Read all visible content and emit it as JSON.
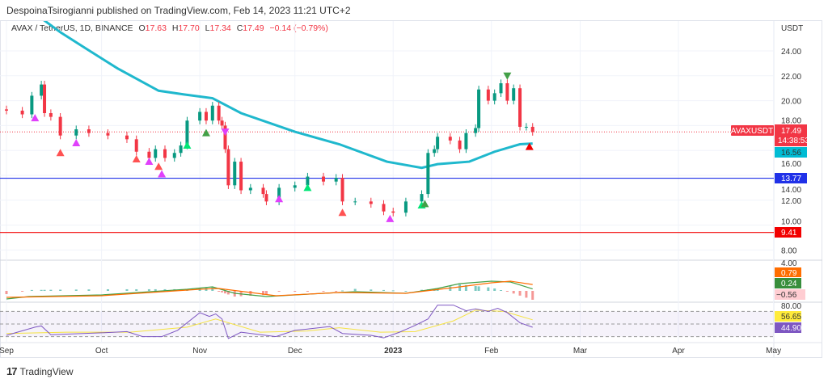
{
  "header": {
    "published": "DespoinaTsirogianni published on TradingView.com, Feb 14, 2023 11:21 UTC+2"
  },
  "symbol": {
    "name": "AVAX / TetherUS, 1D, BINANCE",
    "open_label": "O",
    "open": "17.63",
    "high_label": "H",
    "high": "17.70",
    "low_label": "L",
    "low": "17.34",
    "close_label": "C",
    "close": "17.49",
    "change": "−0.14 (−0.79%)"
  },
  "price_axis": {
    "currency": "USDT",
    "ticks": [
      "24.00",
      "22.00",
      "20.00",
      "18.00",
      "16.00",
      "14.00",
      "12.00",
      "10.00",
      "8.00"
    ],
    "tick_values": [
      24,
      22,
      20,
      18,
      16,
      14,
      12,
      10,
      8
    ]
  },
  "tags": {
    "ticker": "AVAXUSDT",
    "last_price": "17.49",
    "countdown": "14:38:53",
    "ma": "16.56",
    "blue_line": "13.77",
    "red_line": "9.41",
    "macd_top": "4.00",
    "signal": "0.79",
    "macd": "0.24",
    "hist": "−0.56",
    "rsi_top": "80.00",
    "rsi_ma": "56.65",
    "rsi": "44.90"
  },
  "time_axis": {
    "labels": [
      "Sep",
      "Oct",
      "Nov",
      "Dec",
      "2023",
      "Feb",
      "Mar",
      "Apr",
      "May"
    ],
    "dates": [
      "2022-09-01",
      "2022-10-01",
      "2022-11-01",
      "2022-12-01",
      "2023-01-01",
      "2023-02-01",
      "2023-03-01",
      "2023-04-01",
      "2023-05-01"
    ]
  },
  "colors": {
    "up": "#089981",
    "down": "#f23645",
    "ma": "#1fb8cd",
    "blue_line": "#2031e8",
    "red_line": "#f20000",
    "macd": "#43a047",
    "signal": "#ff6d00",
    "rsi": "#7e57c2",
    "rsi_ma": "#f5e342"
  },
  "chart_data": {
    "type": "candlestick",
    "closes": [
      [
        "2022-09-01",
        19.2
      ],
      [
        "2022-09-06",
        18.9
      ],
      [
        "2022-09-09",
        20.4
      ],
      [
        "2022-09-12",
        21.3
      ],
      [
        "2022-09-13",
        19.0
      ],
      [
        "2022-09-15",
        18.7
      ],
      [
        "2022-09-18",
        17.2
      ],
      [
        "2022-09-23",
        17.7
      ],
      [
        "2022-09-27",
        17.4
      ],
      [
        "2022-10-03",
        17.2
      ],
      [
        "2022-10-09",
        16.9
      ],
      [
        "2022-10-12",
        15.9
      ],
      [
        "2022-10-16",
        15.4
      ],
      [
        "2022-10-18",
        16.1
      ],
      [
        "2022-10-21",
        15.4
      ],
      [
        "2022-10-24",
        15.8
      ],
      [
        "2022-10-26",
        16.4
      ],
      [
        "2022-10-28",
        18.4
      ],
      [
        "2022-11-01",
        19.1
      ],
      [
        "2022-11-03",
        18.4
      ],
      [
        "2022-11-05",
        19.6
      ],
      [
        "2022-11-07",
        18.4
      ],
      [
        "2022-11-08",
        18.0
      ],
      [
        "2022-11-09",
        16.1
      ],
      [
        "2022-11-10",
        13.2
      ],
      [
        "2022-11-12",
        15.1
      ],
      [
        "2022-11-14",
        12.8
      ],
      [
        "2022-11-17",
        13.0
      ],
      [
        "2022-11-21",
        12.5
      ],
      [
        "2022-11-22",
        11.9
      ],
      [
        "2022-11-26",
        13.0
      ],
      [
        "2022-12-01",
        13.2
      ],
      [
        "2022-12-05",
        13.9
      ],
      [
        "2022-12-10",
        13.5
      ],
      [
        "2022-12-14",
        13.8
      ],
      [
        "2022-12-16",
        11.9
      ],
      [
        "2022-12-20",
        11.9
      ],
      [
        "2022-12-25",
        11.7
      ],
      [
        "2022-12-29",
        11.1
      ],
      [
        "2023-01-01",
        11.0
      ],
      [
        "2023-01-05",
        11.9
      ],
      [
        "2023-01-10",
        12.5
      ],
      [
        "2023-01-12",
        15.8
      ],
      [
        "2023-01-14",
        16.1
      ],
      [
        "2023-01-15",
        17.1
      ],
      [
        "2023-01-19",
        16.8
      ],
      [
        "2023-01-22",
        16.1
      ],
      [
        "2023-01-24",
        17.4
      ],
      [
        "2023-01-27",
        17.8
      ],
      [
        "2023-01-28",
        20.9
      ],
      [
        "2023-01-31",
        20.0
      ],
      [
        "2023-02-02",
        20.6
      ],
      [
        "2023-02-04",
        21.4
      ],
      [
        "2023-02-06",
        20.0
      ],
      [
        "2023-02-08",
        21.0
      ],
      [
        "2023-02-10",
        17.9
      ],
      [
        "2023-02-12",
        17.9
      ],
      [
        "2023-02-14",
        17.49
      ]
    ],
    "moving_average": [
      [
        "2022-09-10",
        27.0
      ],
      [
        "2022-09-18",
        25.5
      ],
      [
        "2022-09-26",
        24.2
      ],
      [
        "2022-10-06",
        22.6
      ],
      [
        "2022-10-19",
        20.8
      ],
      [
        "2022-10-27",
        20.5
      ],
      [
        "2022-11-05",
        20.2
      ],
      [
        "2022-11-14",
        19.0
      ],
      [
        "2022-12-01",
        17.5
      ],
      [
        "2022-12-15",
        16.5
      ],
      [
        "2022-12-30",
        15.1
      ],
      [
        "2023-01-10",
        14.6
      ],
      [
        "2023-01-15",
        14.9
      ],
      [
        "2023-01-25",
        15.1
      ],
      [
        "2023-02-02",
        15.9
      ],
      [
        "2023-02-10",
        16.5
      ],
      [
        "2023-02-14",
        16.56
      ]
    ],
    "horizontal_lines": [
      13.77,
      9.41
    ],
    "markers": [
      {
        "date": "2022-09-10",
        "price": 18.6,
        "dir": "up",
        "color": "#e040fb"
      },
      {
        "date": "2022-09-23",
        "price": 16.6,
        "dir": "up",
        "color": "#e040fb"
      },
      {
        "date": "2022-10-16",
        "price": 15.1,
        "dir": "up",
        "color": "#e040fb"
      },
      {
        "date": "2022-10-20",
        "price": 14.1,
        "dir": "up",
        "color": "#e040fb"
      },
      {
        "date": "2022-11-26",
        "price": 12.1,
        "dir": "up",
        "color": "#e040fb"
      },
      {
        "date": "2022-12-31",
        "price": 10.5,
        "dir": "up",
        "color": "#e040fb"
      },
      {
        "date": "2022-09-18",
        "price": 15.8,
        "dir": "up",
        "color": "#ff5252"
      },
      {
        "date": "2022-10-12",
        "price": 15.3,
        "dir": "up",
        "color": "#ff5252"
      },
      {
        "date": "2022-10-19",
        "price": 14.7,
        "dir": "up",
        "color": "#ff5252"
      },
      {
        "date": "2022-12-16",
        "price": 11.0,
        "dir": "up",
        "color": "#ff5252"
      },
      {
        "date": "2023-02-13",
        "price": 16.3,
        "dir": "up",
        "color": "#f20000"
      },
      {
        "date": "2022-10-28",
        "price": 16.4,
        "dir": "up",
        "color": "#00e676"
      },
      {
        "date": "2022-12-05",
        "price": 13.0,
        "dir": "up",
        "color": "#00e676"
      },
      {
        "date": "2023-01-10",
        "price": 11.6,
        "dir": "up",
        "color": "#00e676"
      },
      {
        "date": "2022-11-03",
        "price": 17.4,
        "dir": "up",
        "color": "#43a047"
      },
      {
        "date": "2023-01-11",
        "price": 11.7,
        "dir": "up",
        "color": "#43a047"
      },
      {
        "date": "2022-11-09",
        "price": 17.5,
        "dir": "down",
        "color": "#e040fb"
      },
      {
        "date": "2023-02-06",
        "price": 22.0,
        "dir": "down",
        "color": "#43a047"
      }
    ],
    "macd": [
      [
        "2022-09-01",
        -1.0
      ],
      [
        "2022-09-08",
        -0.7
      ],
      [
        "2022-10-01",
        -0.5
      ],
      [
        "2022-10-28",
        0.2
      ],
      [
        "2022-11-05",
        0.5
      ],
      [
        "2022-11-12",
        -0.3
      ],
      [
        "2022-11-22",
        -0.7
      ],
      [
        "2022-12-10",
        -0.3
      ],
      [
        "2022-12-20",
        -0.1
      ],
      [
        "2023-01-05",
        -0.3
      ],
      [
        "2023-01-15",
        0.3
      ],
      [
        "2023-01-22",
        0.9
      ],
      [
        "2023-02-01",
        1.2
      ],
      [
        "2023-02-07",
        1.1
      ],
      [
        "2023-02-14",
        0.24
      ]
    ],
    "signal": [
      [
        "2022-09-01",
        -0.8
      ],
      [
        "2022-10-01",
        -0.6
      ],
      [
        "2022-11-01",
        0.2
      ],
      [
        "2022-11-07",
        0.3
      ],
      [
        "2022-11-25",
        -0.6
      ],
      [
        "2022-12-15",
        -0.2
      ],
      [
        "2023-01-05",
        -0.3
      ],
      [
        "2023-01-20",
        0.4
      ],
      [
        "2023-02-01",
        1.0
      ],
      [
        "2023-02-07",
        1.2
      ],
      [
        "2023-02-14",
        0.79
      ]
    ],
    "rsi": [
      [
        "2022-09-01",
        32
      ],
      [
        "2022-09-10",
        45
      ],
      [
        "2022-09-12",
        47
      ],
      [
        "2022-09-15",
        33
      ],
      [
        "2022-10-01",
        36
      ],
      [
        "2022-10-09",
        38
      ],
      [
        "2022-10-14",
        30
      ],
      [
        "2022-10-20",
        30
      ],
      [
        "2022-10-25",
        40
      ],
      [
        "2022-11-01",
        68
      ],
      [
        "2022-11-04",
        62
      ],
      [
        "2022-11-06",
        66
      ],
      [
        "2022-11-08",
        58
      ],
      [
        "2022-11-10",
        27
      ],
      [
        "2022-11-14",
        37
      ],
      [
        "2022-11-25",
        30
      ],
      [
        "2022-12-01",
        40
      ],
      [
        "2022-12-05",
        42
      ],
      [
        "2022-12-12",
        46
      ],
      [
        "2022-12-16",
        35
      ],
      [
        "2022-12-25",
        32
      ],
      [
        "2022-12-29",
        28
      ],
      [
        "2023-01-03",
        37
      ],
      [
        "2023-01-08",
        48
      ],
      [
        "2023-01-12",
        58
      ],
      [
        "2023-01-15",
        80
      ],
      [
        "2023-01-20",
        80
      ],
      [
        "2023-01-24",
        71
      ],
      [
        "2023-01-27",
        74
      ],
      [
        "2023-01-31",
        70
      ],
      [
        "2023-02-03",
        75
      ],
      [
        "2023-02-06",
        68
      ],
      [
        "2023-02-10",
        52
      ],
      [
        "2023-02-14",
        44.9
      ]
    ],
    "rsi_ma": [
      [
        "2022-09-01",
        35
      ],
      [
        "2022-09-20",
        37
      ],
      [
        "2022-10-10",
        37
      ],
      [
        "2022-10-28",
        45
      ],
      [
        "2022-11-06",
        58
      ],
      [
        "2022-11-20",
        37
      ],
      [
        "2022-12-05",
        39
      ],
      [
        "2022-12-15",
        44
      ],
      [
        "2022-12-28",
        37
      ],
      [
        "2023-01-08",
        38
      ],
      [
        "2023-01-20",
        55
      ],
      [
        "2023-01-27",
        72
      ],
      [
        "2023-02-05",
        70
      ],
      [
        "2023-02-14",
        56.65
      ]
    ],
    "rsi_levels": [
      70,
      50,
      30
    ]
  },
  "footer": {
    "brand": "TradingView"
  }
}
